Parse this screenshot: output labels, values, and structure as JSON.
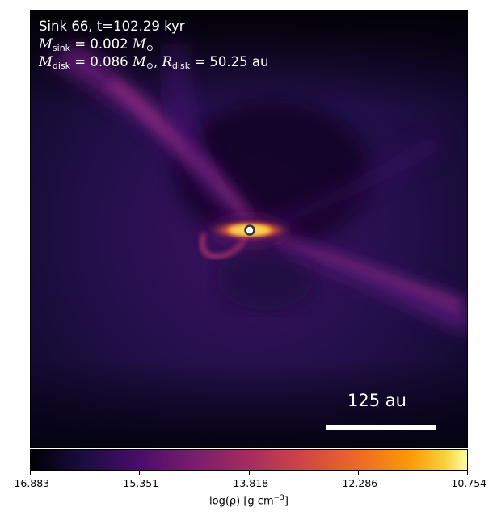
{
  "header": {
    "line1": "Sink 66, t=102.29 kyr",
    "m_sink_value": "= 0.002",
    "m_disk_value": "= 0.086",
    "r_disk_value": "= 50.25 au"
  },
  "scale_bar": {
    "label": "125 au"
  },
  "colorbar": {
    "ticks": [
      "-16.883",
      "-15.351",
      "-13.818",
      "-12.286",
      "-10.754"
    ],
    "label_main": "log(ρ) [g cm",
    "label_exp": "−3",
    "label_end": "]"
  },
  "colors": {
    "background": "#0d0829",
    "sink_marker": "#333333"
  }
}
